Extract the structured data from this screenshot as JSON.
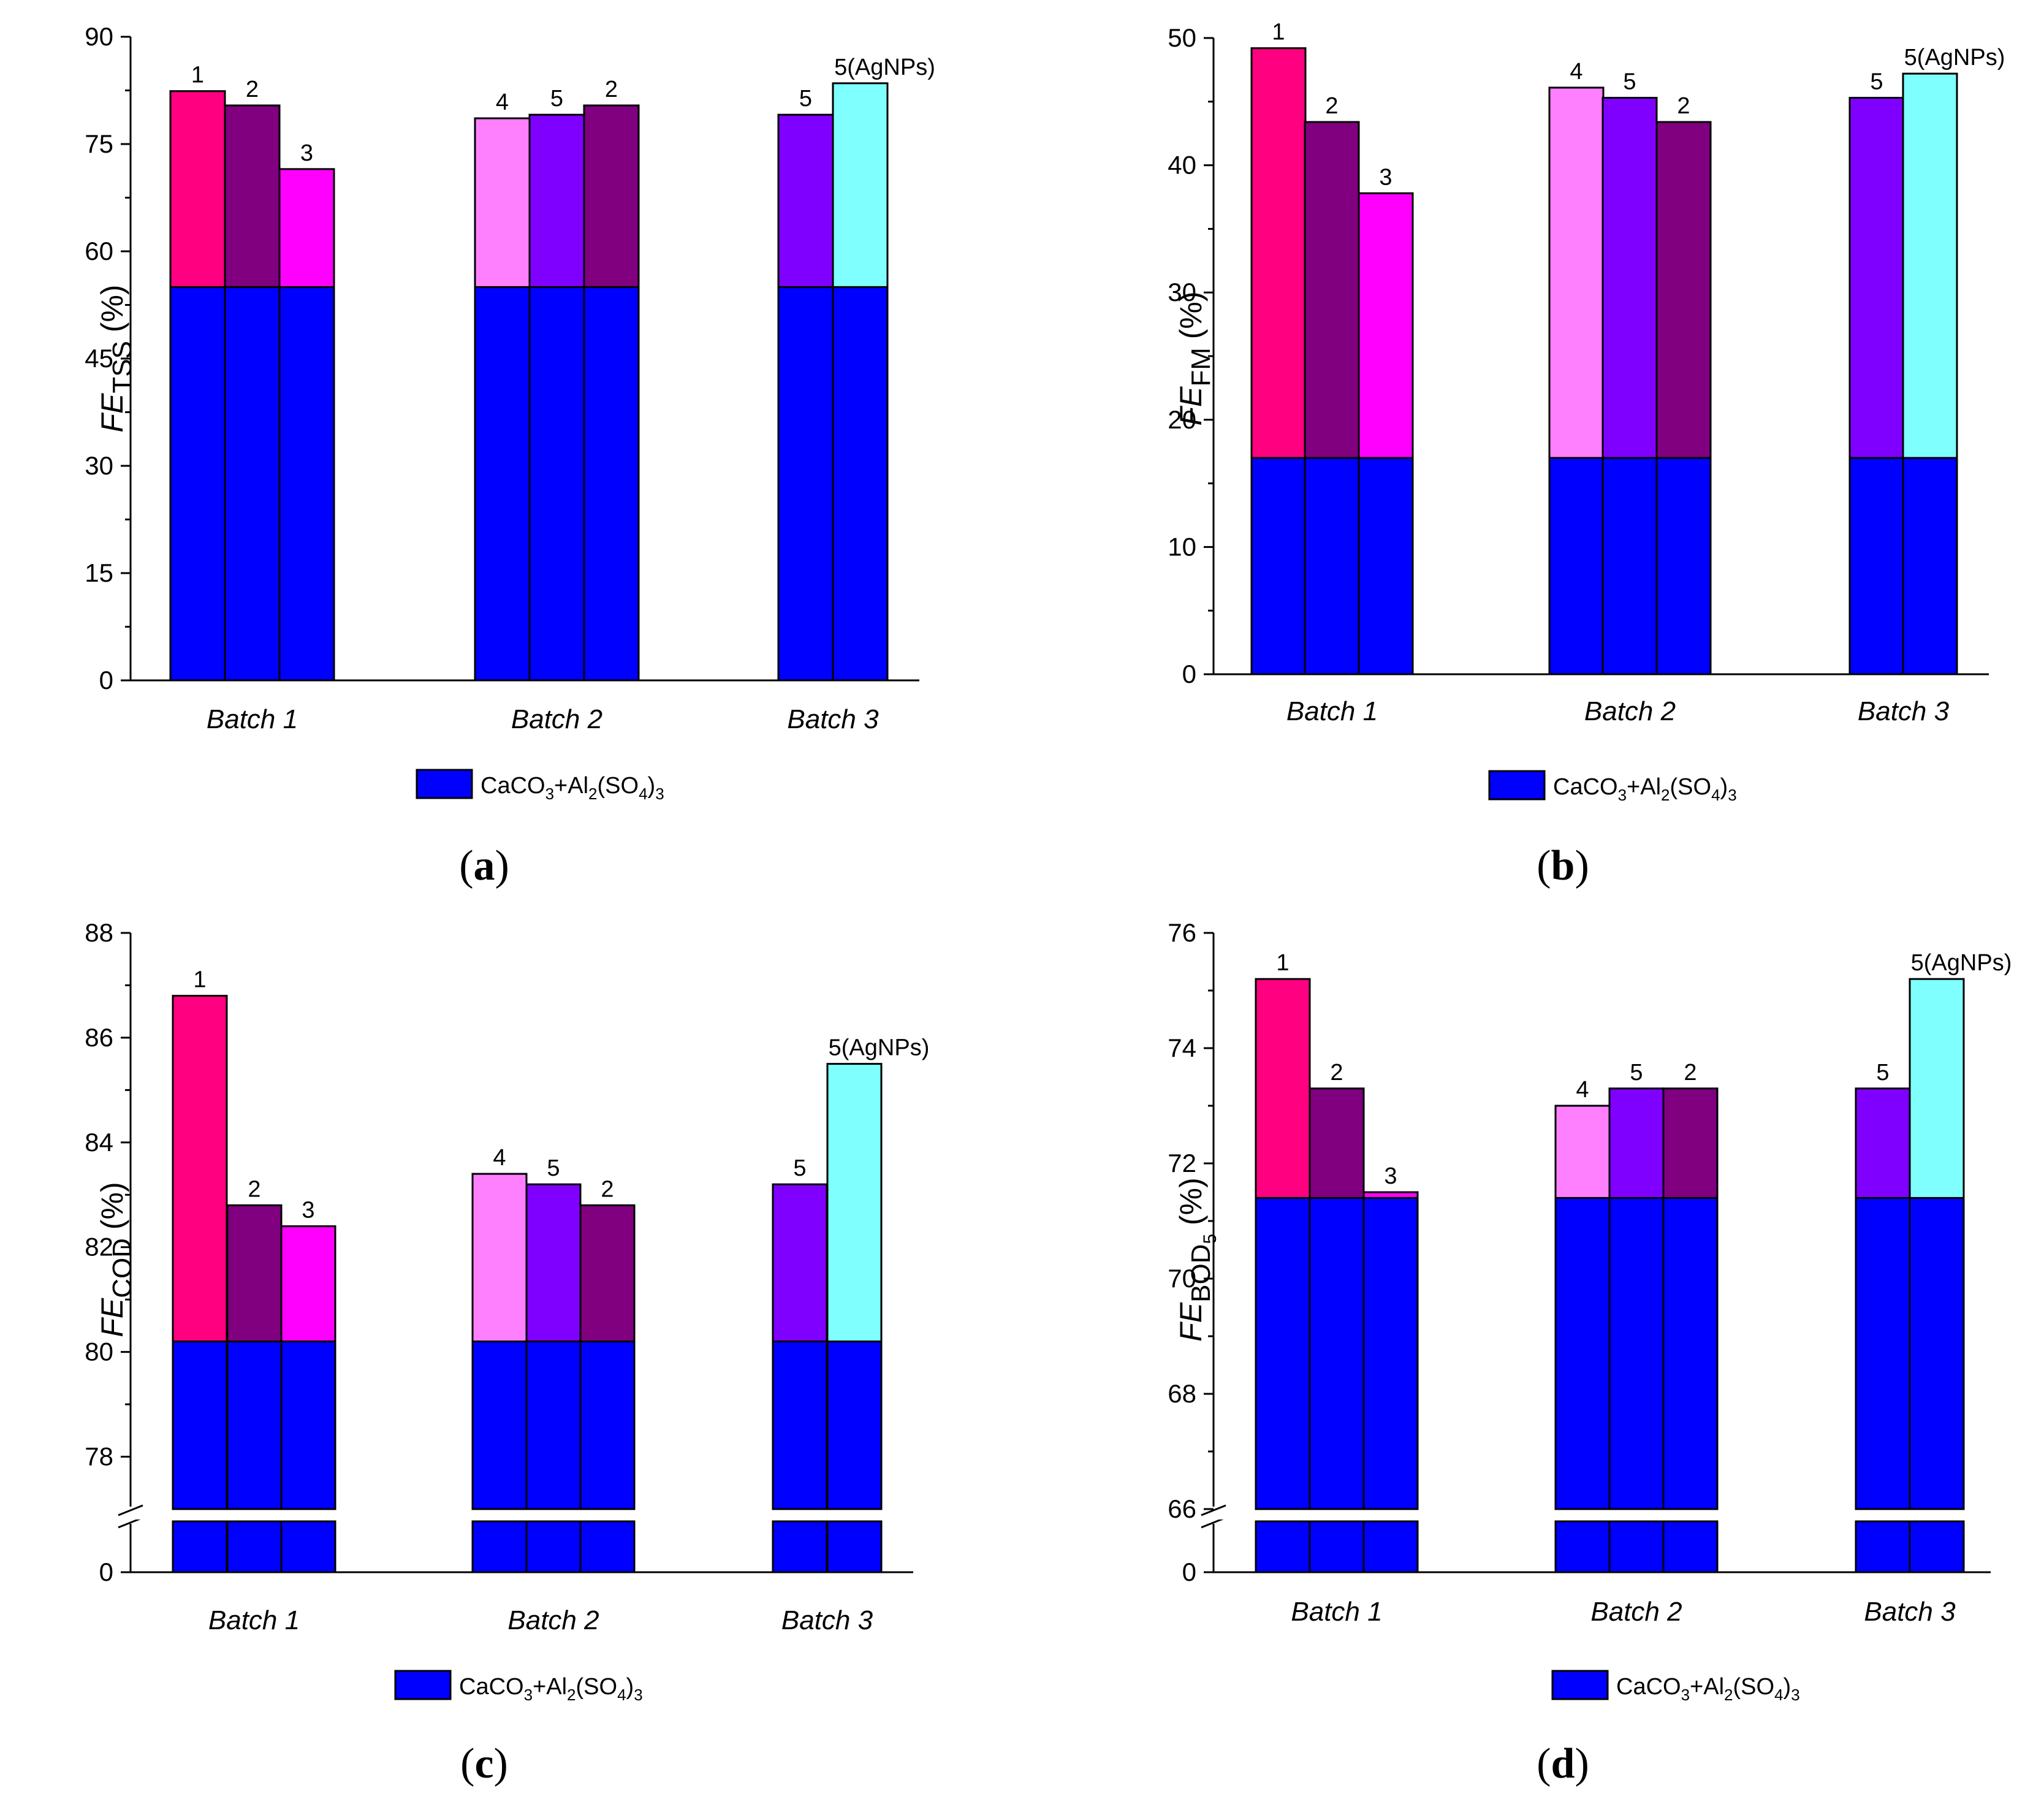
{
  "figure": {
    "panel_labels": [
      "a",
      "b",
      "c",
      "d"
    ],
    "legend": {
      "label": "CaCO3+Al2(SO4)3",
      "color": "#0000ff"
    },
    "colors": {
      "base": "#0000ff",
      "1": "#ff0080",
      "2": "#800080",
      "3": "#ff00ff",
      "4": "#ff80ff",
      "5": "#8000ff",
      "5(AgNPs)": "#80ffff"
    }
  },
  "chart_data": [
    {
      "type": "bar",
      "panel": "a",
      "ylabel_main": "FE",
      "ylabel_sub": "TSS",
      "ylabel_unit": "(%)",
      "ylim": [
        0,
        90
      ],
      "yticks": [
        0,
        15,
        30,
        45,
        60,
        75,
        90
      ],
      "axis_break": false,
      "categories": [
        "Batch 1",
        "Batch 2",
        "Batch 3"
      ],
      "base_value": 55,
      "groups": [
        {
          "category": "Batch 1",
          "bars": [
            {
              "label": "1",
              "value": 82.4
            },
            {
              "label": "2",
              "value": 80.4
            },
            {
              "label": "3",
              "value": 71.5
            }
          ]
        },
        {
          "category": "Batch 2",
          "bars": [
            {
              "label": "4",
              "value": 78.6
            },
            {
              "label": "5",
              "value": 79.1
            },
            {
              "label": "2",
              "value": 80.4
            }
          ]
        },
        {
          "category": "Batch 3",
          "bars": [
            {
              "label": "5",
              "value": 79.1
            },
            {
              "label": "5(AgNPs)",
              "value": 83.5
            }
          ]
        }
      ]
    },
    {
      "type": "bar",
      "panel": "b",
      "ylabel_main": "FE",
      "ylabel_sub": "FM",
      "ylabel_unit": "(%)",
      "ylim": [
        0,
        50
      ],
      "yticks": [
        0,
        10,
        20,
        30,
        40,
        50
      ],
      "axis_break": false,
      "categories": [
        "Batch 1",
        "Batch 2",
        "Batch 3"
      ],
      "base_value": 17,
      "groups": [
        {
          "category": "Batch 1",
          "bars": [
            {
              "label": "1",
              "value": 49.2
            },
            {
              "label": "2",
              "value": 43.4
            },
            {
              "label": "3",
              "value": 37.8
            }
          ]
        },
        {
          "category": "Batch 2",
          "bars": [
            {
              "label": "4",
              "value": 46.1
            },
            {
              "label": "5",
              "value": 45.3
            },
            {
              "label": "2",
              "value": 43.4
            }
          ]
        },
        {
          "category": "Batch 3",
          "bars": [
            {
              "label": "5",
              "value": 45.3
            },
            {
              "label": "5(AgNPs)",
              "value": 47.2
            }
          ]
        }
      ]
    },
    {
      "type": "bar",
      "panel": "c",
      "ylabel_main": "FE",
      "ylabel_sub": "COD",
      "ylabel_unit": "(%)",
      "ylim": [
        77,
        88
      ],
      "yticks": [
        78,
        80,
        82,
        84,
        86,
        88
      ],
      "axis_break": true,
      "break_tick": "0",
      "categories": [
        "Batch 1",
        "Batch 2",
        "Batch 3"
      ],
      "base_value": 80.2,
      "groups": [
        {
          "category": "Batch 1",
          "bars": [
            {
              "label": "1",
              "value": 86.8
            },
            {
              "label": "2",
              "value": 82.8
            },
            {
              "label": "3",
              "value": 82.4
            }
          ]
        },
        {
          "category": "Batch 2",
          "bars": [
            {
              "label": "4",
              "value": 83.4
            },
            {
              "label": "5",
              "value": 83.2
            },
            {
              "label": "2",
              "value": 82.8
            }
          ]
        },
        {
          "category": "Batch 3",
          "bars": [
            {
              "label": "5",
              "value": 83.2
            },
            {
              "label": "5(AgNPs)",
              "value": 85.5
            }
          ]
        }
      ]
    },
    {
      "type": "bar",
      "panel": "d",
      "ylabel_main": "FE",
      "ylabel_sub": "BOD",
      "ylabel_subsub": "5",
      "ylabel_unit": "(%)",
      "ylim": [
        66,
        76
      ],
      "yticks": [
        66,
        68,
        70,
        72,
        74,
        76
      ],
      "axis_break": true,
      "break_tick": "0",
      "categories": [
        "Batch 1",
        "Batch 2",
        "Batch 3"
      ],
      "base_value": 71.4,
      "groups": [
        {
          "category": "Batch 1",
          "bars": [
            {
              "label": "1",
              "value": 75.2
            },
            {
              "label": "2",
              "value": 73.3
            },
            {
              "label": "3",
              "value": 71.5
            }
          ]
        },
        {
          "category": "Batch 2",
          "bars": [
            {
              "label": "4",
              "value": 73.0
            },
            {
              "label": "5",
              "value": 73.3
            },
            {
              "label": "2",
              "value": 73.3
            }
          ]
        },
        {
          "category": "Batch 3",
          "bars": [
            {
              "label": "5",
              "value": 73.3
            },
            {
              "label": "5(AgNPs)",
              "value": 75.2
            }
          ]
        }
      ]
    }
  ]
}
